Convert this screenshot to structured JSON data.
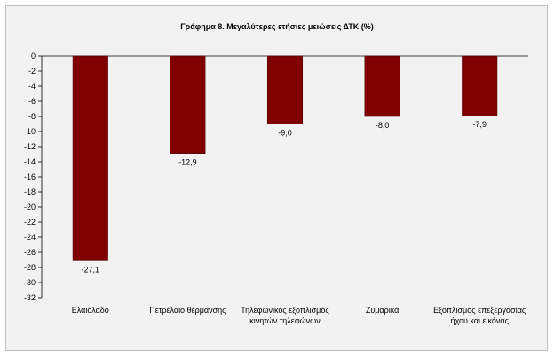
{
  "chart_data": {
    "type": "bar",
    "title": "Γράφημα 8. Μεγαλύτερες ετήσιες μειώσεις ΔΤΚ (%)",
    "categories": [
      [
        "Ελαιόλαδο"
      ],
      [
        "Πετρέλαιο θέρμανσης"
      ],
      [
        "Τηλεφωνικός εξοπλισμός",
        "κινητών τηλεφώνων"
      ],
      [
        "Ζυμαρικά"
      ],
      [
        "Εξοπλισμός επεξεργασίας",
        "ήχου και εικόνας"
      ]
    ],
    "values": [
      -27.1,
      -12.9,
      -9.0,
      -8.0,
      -7.9
    ],
    "data_labels": [
      "-27,1",
      "-12,9",
      "-9,0",
      "-8,0",
      "-7,9"
    ],
    "ylim": [
      -32,
      0
    ],
    "yticks": [
      0,
      -2,
      -4,
      -6,
      -8,
      -10,
      -12,
      -14,
      -16,
      -18,
      -20,
      -22,
      -24,
      -26,
      -28,
      -30,
      -32
    ],
    "bar_color": "#800000",
    "grid": false,
    "legend": "none"
  }
}
